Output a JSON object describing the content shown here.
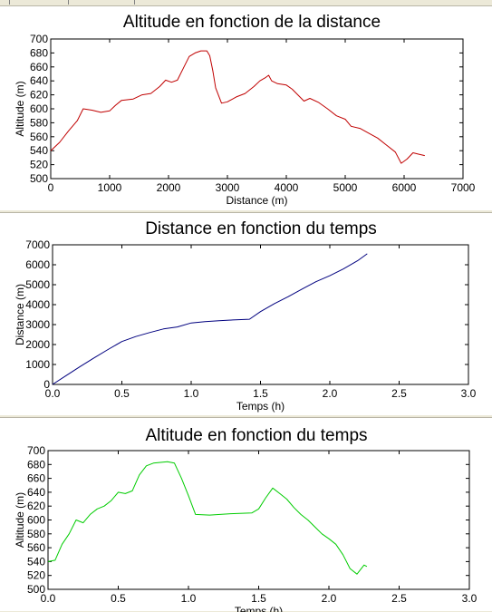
{
  "window": {
    "accent": "#ece9d8"
  },
  "chart_data": [
    {
      "type": "line",
      "title": "Altitude en fonction de la distance",
      "xlabel": "Distance (m)",
      "ylabel": "Altitude (m)",
      "xlim": [
        0,
        7000
      ],
      "ylim": [
        500,
        700
      ],
      "xticks": [
        0,
        1000,
        2000,
        3000,
        4000,
        5000,
        6000,
        7000
      ],
      "yticks": [
        500,
        520,
        540,
        560,
        580,
        600,
        620,
        640,
        660,
        680,
        700
      ],
      "grid": false,
      "color": "#c00000",
      "series": [
        {
          "x": [
            0,
            150,
            300,
            450,
            550,
            700,
            850,
            1000,
            1100,
            1200,
            1400,
            1550,
            1700,
            1850,
            1950,
            2050,
            2150,
            2250,
            2350,
            2450,
            2550,
            2650,
            2700,
            2750,
            2800,
            2900,
            3000,
            3150,
            3300,
            3450,
            3550,
            3650,
            3700,
            3750,
            3850,
            4000,
            4100,
            4300,
            4400,
            4550,
            4700,
            4850,
            5000,
            5100,
            5250,
            5400,
            5550,
            5700,
            5850,
            5950,
            6050,
            6150,
            6250,
            6350
          ],
          "y": [
            540,
            552,
            568,
            583,
            600,
            598,
            595,
            597,
            605,
            612,
            614,
            620,
            622,
            632,
            641,
            638,
            641,
            658,
            675,
            680,
            683,
            683,
            676,
            655,
            630,
            608,
            610,
            617,
            622,
            632,
            640,
            645,
            648,
            640,
            636,
            634,
            628,
            611,
            615,
            609,
            600,
            590,
            585,
            575,
            572,
            565,
            558,
            548,
            538,
            522,
            528,
            537,
            535,
            533
          ]
        }
      ]
    },
    {
      "type": "line",
      "title": "Distance en fonction du temps",
      "xlabel": "Temps (h)",
      "ylabel": "Distance (m)",
      "xlim": [
        0,
        3.0
      ],
      "ylim": [
        0,
        7000
      ],
      "xticks": [
        0.0,
        0.5,
        1.0,
        1.5,
        2.0,
        2.5,
        3.0
      ],
      "xtick_labels": [
        "0.0",
        "0.5",
        "1.0",
        "1.5",
        "2.0",
        "2.5",
        "3.0"
      ],
      "yticks": [
        0,
        1000,
        2000,
        3000,
        4000,
        5000,
        6000,
        7000
      ],
      "grid": false,
      "color": "#00007f",
      "series": [
        {
          "x": [
            0,
            0.1,
            0.2,
            0.3,
            0.4,
            0.5,
            0.6,
            0.7,
            0.8,
            0.9,
            1.0,
            1.1,
            1.2,
            1.3,
            1.42,
            1.5,
            1.6,
            1.7,
            1.8,
            1.9,
            2.0,
            2.1,
            2.2,
            2.27
          ],
          "y": [
            0,
            450,
            900,
            1330,
            1750,
            2150,
            2400,
            2600,
            2780,
            2880,
            3080,
            3150,
            3190,
            3230,
            3270,
            3650,
            4050,
            4400,
            4780,
            5150,
            5450,
            5800,
            6200,
            6550
          ]
        }
      ]
    },
    {
      "type": "line",
      "title": "Altitude en fonction du temps",
      "xlabel": "Temps (h)",
      "ylabel": "Altitude (m)",
      "xlim": [
        0,
        3.0
      ],
      "ylim": [
        500,
        700
      ],
      "xticks": [
        0.0,
        0.5,
        1.0,
        1.5,
        2.0,
        2.5,
        3.0
      ],
      "xtick_labels": [
        "0.0",
        "0.5",
        "1.0",
        "1.5",
        "2.0",
        "2.5",
        "3.0"
      ],
      "yticks": [
        500,
        520,
        540,
        560,
        580,
        600,
        620,
        640,
        660,
        680,
        700
      ],
      "grid": false,
      "color": "#00cc00",
      "series": [
        {
          "x": [
            0,
            0.05,
            0.1,
            0.15,
            0.2,
            0.25,
            0.3,
            0.35,
            0.4,
            0.45,
            0.5,
            0.55,
            0.6,
            0.65,
            0.7,
            0.75,
            0.8,
            0.85,
            0.9,
            0.95,
            1.0,
            1.05,
            1.15,
            1.3,
            1.45,
            1.5,
            1.55,
            1.6,
            1.65,
            1.7,
            1.75,
            1.8,
            1.85,
            1.9,
            1.95,
            2.0,
            2.05,
            2.1,
            2.15,
            2.2,
            2.25,
            2.27
          ],
          "y": [
            540,
            542,
            565,
            580,
            600,
            596,
            608,
            616,
            620,
            628,
            640,
            638,
            642,
            665,
            678,
            682,
            683,
            684,
            682,
            660,
            635,
            608,
            607,
            609,
            610,
            616,
            632,
            646,
            638,
            630,
            618,
            608,
            600,
            590,
            580,
            573,
            565,
            550,
            530,
            522,
            535,
            533
          ]
        }
      ]
    }
  ]
}
